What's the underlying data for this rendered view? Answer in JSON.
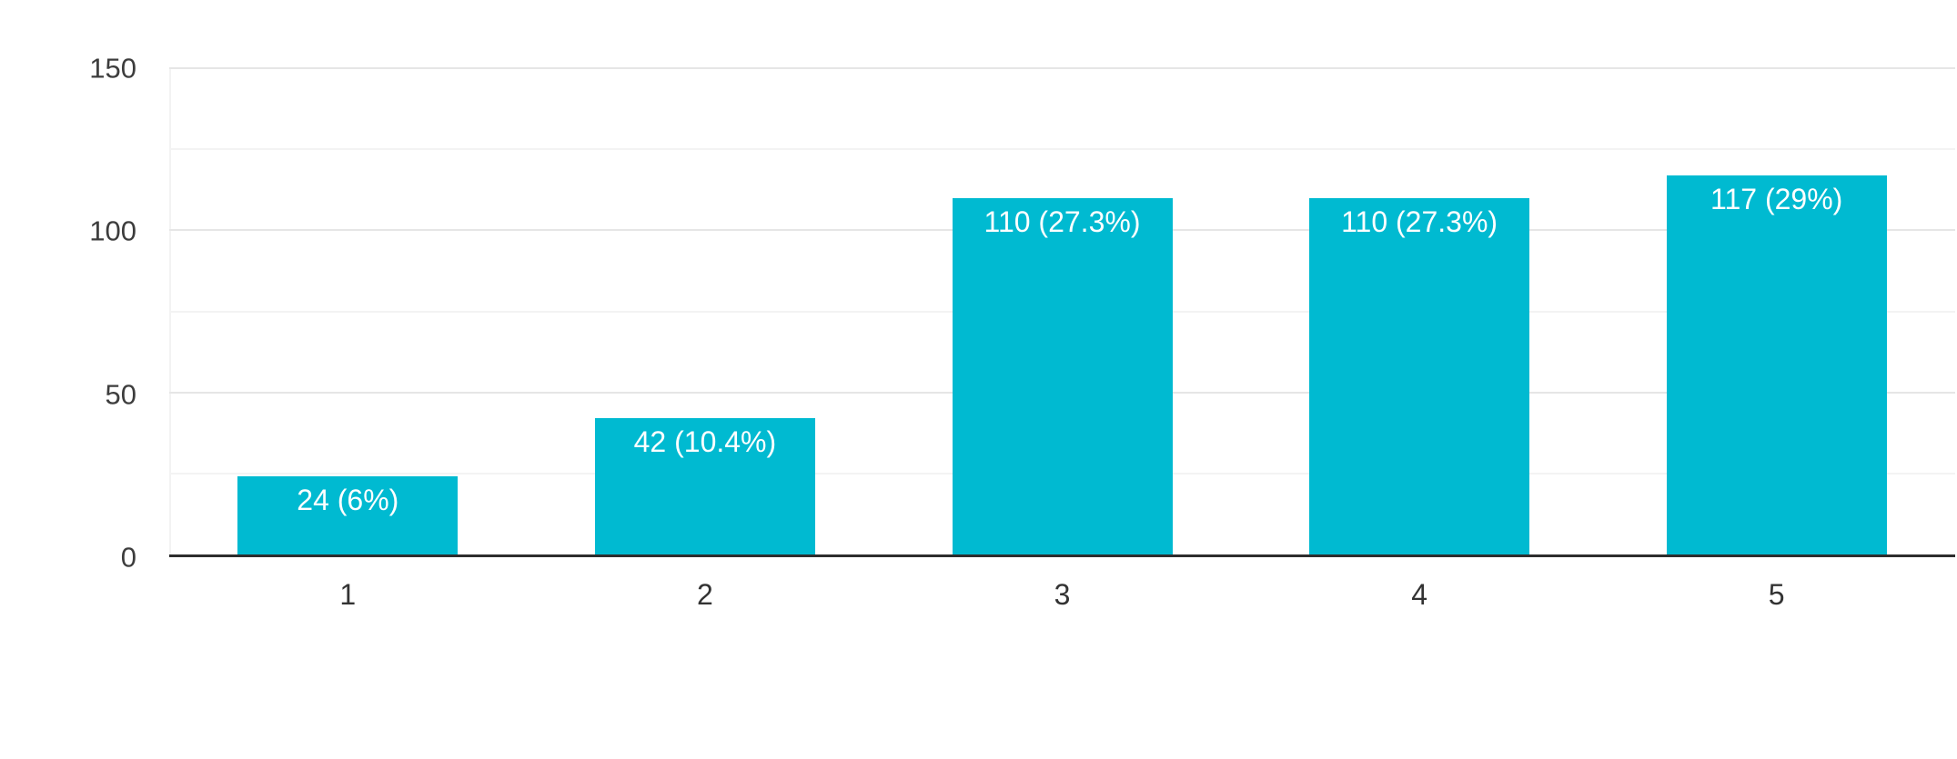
{
  "chart_data": {
    "type": "bar",
    "title": "",
    "xlabel": "",
    "ylabel": "",
    "categories": [
      "1",
      "2",
      "3",
      "4",
      "5"
    ],
    "values": [
      24,
      42,
      110,
      110,
      117
    ],
    "bar_labels": [
      "24 (6%)",
      "42 (10.4%)",
      "110 (27.3%)",
      "110 (27.3%)",
      "117 (29%)"
    ],
    "ylim": [
      0,
      150
    ],
    "yticks": [
      0,
      50,
      100,
      150
    ],
    "minor_gridlines": [
      25,
      75,
      125
    ],
    "grid": true,
    "legend_position": "none",
    "colors": {
      "bar": "#00bad1",
      "bar_label_text": "#ffffff",
      "axis_line": "#2d2d2d",
      "major_gridline": "#e6e6e6",
      "minor_gridline": "#f3f3f3",
      "y_tick_text": "#3d3d3d",
      "x_tick_text": "#333333",
      "background": "#ffffff"
    }
  }
}
